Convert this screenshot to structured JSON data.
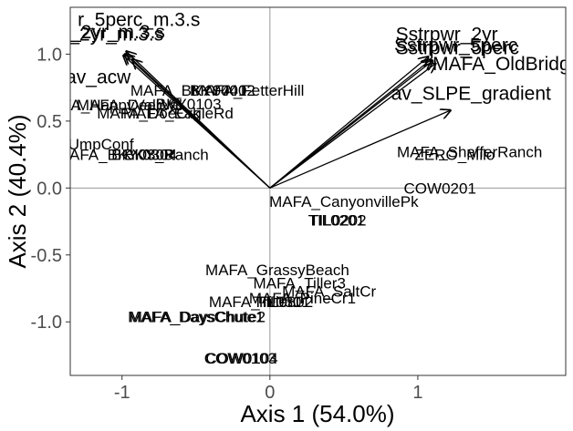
{
  "chart_data": {
    "type": "scatter",
    "title": "",
    "xlabel": "Axis 1 (54.0%)",
    "ylabel": "Axis 2 (40.4%)",
    "xlim": [
      -1.35,
      2.0
    ],
    "ylim": [
      -1.4,
      1.35
    ],
    "x_ticks": [
      -1,
      0,
      1
    ],
    "y_ticks": [
      -1.0,
      -0.5,
      0.0,
      0.5,
      1.0
    ],
    "x_tick_labels": [
      "-1",
      "0",
      "1"
    ],
    "y_tick_labels": [
      "-1.0",
      "-0.5",
      "0.0",
      "0.5",
      "1.0"
    ],
    "grid": false,
    "reference_lines": {
      "x": 0,
      "y": 0
    },
    "points": [
      {
        "label": "MAFA_BKY0401",
        "x": -0.55,
        "y": 0.73
      },
      {
        "label": "BKY0402",
        "x": -0.32,
        "y": 0.73
      },
      {
        "label": "MAFA_FetterHill",
        "x": -0.15,
        "y": 0.73
      },
      {
        "label": "MAFA_HappyValley",
        "x": -1.1,
        "y": 0.62
      },
      {
        "label": "MAFA_DeerVal",
        "x": -0.95,
        "y": 0.62
      },
      {
        "label": "BKY0103",
        "x": -0.55,
        "y": 0.63
      },
      {
        "label": "MAFA_DoeCrk",
        "x": -0.82,
        "y": 0.56
      },
      {
        "label": "MAFA_EagleRd",
        "x": -0.62,
        "y": 0.56
      },
      {
        "label": "RO_UmpConf",
        "x": -1.25,
        "y": 0.33
      },
      {
        "label": "MAFA_BKY0303",
        "x": -1.05,
        "y": 0.25
      },
      {
        "label": "BKY0304",
        "x": -0.85,
        "y": 0.25
      },
      {
        "label": "BKY_Ranch",
        "x": -0.7,
        "y": 0.25
      },
      {
        "label": "MAFA_ShafferRanch",
        "x": 1.35,
        "y": 0.27
      },
      {
        "label": "ZERO_Milo",
        "x": 1.25,
        "y": 0.25
      },
      {
        "label": "MAFA_CanyonvillePk",
        "x": 0.5,
        "y": -0.1
      },
      {
        "label": "COW0201",
        "x": 1.15,
        "y": 0.0
      },
      {
        "label": "TIL0201",
        "x": 0.45,
        "y": -0.24
      },
      {
        "label": "TIL0202",
        "x": 0.46,
        "y": -0.24
      },
      {
        "label": "MAFA_GrassyBeach",
        "x": 0.05,
        "y": -0.61
      },
      {
        "label": "MAFA_Tiller3",
        "x": 0.2,
        "y": -0.71
      },
      {
        "label": "MAFA_SaltCr",
        "x": 0.4,
        "y": -0.77
      },
      {
        "label": "MAFA_Tiller1",
        "x": -0.1,
        "y": -0.85
      },
      {
        "label": "TIL0301",
        "x": 0.08,
        "y": -0.85
      },
      {
        "label": "TIL0302",
        "x": 0.1,
        "y": -0.85
      },
      {
        "label": "MAFA_PineCr1",
        "x": 0.22,
        "y": -0.82
      },
      {
        "label": "MAFA_DaysChute1",
        "x": -0.5,
        "y": -0.96
      },
      {
        "label": "MAFA_DaysChute2",
        "x": -0.49,
        "y": -0.96
      },
      {
        "label": "COW0103",
        "x": -0.2,
        "y": -1.27
      },
      {
        "label": "COW0104",
        "x": -0.19,
        "y": -1.27
      }
    ],
    "vectors": [
      {
        "label": "r_5perc_m.3.s",
        "x": -0.97,
        "y": 1.02,
        "lx": -1.3,
        "ly": 1.21
      },
      {
        "label": "_2yr_m.3.s",
        "x": -0.98,
        "y": 1.0,
        "lx": -1.35,
        "ly": 1.12
      },
      {
        "label": "_2yr_m.3.s",
        "x": -0.99,
        "y": 0.99,
        "lx": -1.36,
        "ly": 1.1
      },
      {
        "label": "av_acw",
        "x": -0.93,
        "y": 0.96,
        "lx": -1.38,
        "ly": 0.78
      },
      {
        "label": "Sstrpwr_2yr",
        "x": 1.07,
        "y": 0.98,
        "lx": 0.85,
        "ly": 1.1
      },
      {
        "label": "Sstrpwr_5perc",
        "x": 1.09,
        "y": 0.96,
        "lx": 0.84,
        "ly": 1.02
      },
      {
        "label": "Sstrpwr_5perc",
        "x": 1.1,
        "y": 0.95,
        "lx": 0.85,
        "ly": 1.0
      },
      {
        "label": "MAFA_OldBridge",
        "x": 1.12,
        "y": 0.93,
        "lx": 1.1,
        "ly": 0.88
      },
      {
        "label": "av_SLPE_gradient",
        "x": 1.22,
        "y": 0.58,
        "lx": 0.82,
        "ly": 0.66
      }
    ]
  }
}
